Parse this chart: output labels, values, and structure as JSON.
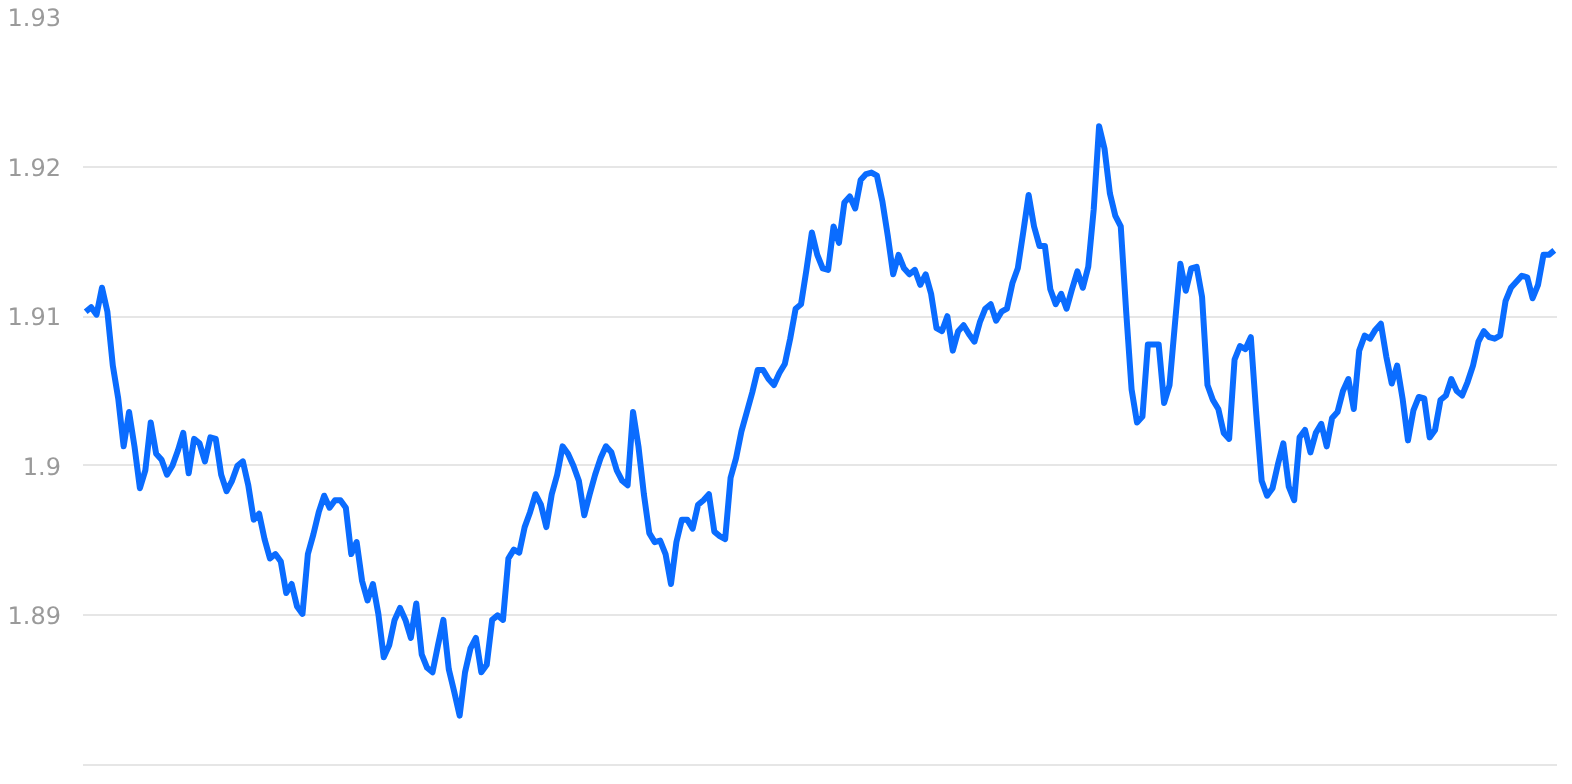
{
  "chart_data": {
    "type": "line",
    "color": "#0a6cff",
    "grid": "y",
    "tick_labels": "y",
    "ylim": [
      1.88,
      1.93
    ],
    "yticks": [
      1.89,
      1.9,
      1.91,
      1.92,
      1.93
    ],
    "categories": [
      null,
      null,
      null,
      null,
      null,
      null,
      null,
      null,
      null,
      null,
      null,
      null,
      null,
      null,
      null,
      null,
      null,
      null,
      null,
      null,
      null,
      null,
      null,
      null,
      null,
      null,
      null,
      null,
      null,
      null,
      null,
      null,
      null,
      null,
      null,
      null,
      null,
      null,
      null,
      null,
      null,
      null,
      null,
      null,
      null,
      null,
      null,
      null,
      null,
      null,
      null,
      null,
      null,
      null,
      null,
      null,
      null,
      null,
      null,
      null,
      null,
      null,
      null,
      null,
      null,
      null,
      null,
      null,
      null,
      null,
      null,
      null,
      null,
      null,
      null,
      null,
      null,
      null,
      null,
      null,
      null,
      null,
      null,
      null,
      null,
      null,
      null,
      null,
      null,
      null,
      null,
      null,
      null,
      null,
      null,
      null,
      null,
      null,
      null,
      null,
      null,
      null,
      null,
      null,
      null,
      null,
      null,
      null,
      null,
      null,
      null,
      null,
      null,
      null,
      null,
      null,
      null,
      null,
      null,
      null,
      null,
      null,
      null,
      null,
      null,
      null,
      null,
      null,
      null,
      null,
      null,
      null,
      null,
      null,
      null,
      null,
      null,
      null,
      null,
      null,
      null,
      null,
      null,
      null,
      null,
      null,
      null,
      null,
      null,
      null,
      null,
      null,
      null,
      null,
      null,
      null,
      null,
      null,
      null,
      null,
      null,
      null,
      null,
      null,
      null,
      null,
      null,
      null,
      null,
      null,
      null,
      null,
      null,
      null,
      null,
      null,
      null,
      null,
      null,
      null,
      null,
      null,
      null,
      null,
      null,
      null,
      null,
      null,
      null,
      null,
      null,
      null,
      null,
      null,
      null,
      null,
      null,
      null,
      null,
      null,
      null,
      null,
      null,
      null,
      null,
      null,
      null,
      null,
      null,
      null,
      null,
      null,
      null,
      null,
      null,
      null,
      null,
      null,
      null,
      null,
      null,
      null,
      null,
      null,
      null,
      null,
      null,
      null,
      null,
      null,
      null,
      null,
      null,
      null,
      null,
      null,
      null,
      null,
      null,
      null,
      null,
      null,
      null,
      null,
      null,
      null,
      null,
      null,
      null,
      null,
      null,
      null,
      null,
      null,
      null,
      null,
      null,
      null,
      null,
      null,
      null,
      null,
      null,
      null,
      null,
      null,
      null,
      null,
      null,
      null,
      null,
      null
    ],
    "values": [
      1.9103,
      1.9106,
      1.9101,
      1.9119,
      1.9103,
      1.9067,
      1.9045,
      1.9013,
      1.9036,
      1.9013,
      1.8985,
      1.8997,
      1.9029,
      1.9008,
      1.9004,
      1.8994,
      1.9,
      1.901,
      1.9022,
      1.8995,
      1.9018,
      1.9015,
      1.9003,
      1.9019,
      1.9018,
      1.8994,
      1.8983,
      1.899,
      1.9,
      1.9003,
      1.8987,
      1.8964,
      1.8968,
      1.8951,
      1.8938,
      1.8941,
      1.8936,
      1.8915,
      1.8921,
      1.8906,
      1.8901,
      1.8941,
      1.8954,
      1.8969,
      1.898,
      1.8972,
      1.8977,
      1.8977,
      1.8972,
      1.8941,
      1.8949,
      1.8923,
      1.891,
      1.8921,
      1.8901,
      1.8872,
      1.888,
      1.8897,
      1.8905,
      1.8897,
      1.8885,
      1.8908,
      1.8874,
      1.8865,
      1.8862,
      1.888,
      1.8897,
      1.8864,
      1.8849,
      1.8833,
      1.8862,
      1.8878,
      1.8885,
      1.8862,
      1.8867,
      1.8897,
      1.89,
      1.8897,
      1.8938,
      1.8944,
      1.8942,
      1.8959,
      1.8969,
      1.8981,
      1.8974,
      1.8959,
      1.8981,
      1.8994,
      1.9013,
      1.9008,
      1.9,
      1.899,
      1.8967,
      1.8981,
      1.8994,
      1.9005,
      1.9013,
      1.9009,
      1.8997,
      1.899,
      1.8987,
      1.9036,
      1.9013,
      1.8981,
      1.8955,
      1.8949,
      1.895,
      1.8941,
      1.8921,
      1.8949,
      1.8964,
      1.8964,
      1.8958,
      1.8974,
      1.8977,
      1.8981,
      1.8956,
      1.8953,
      1.8951,
      1.8992,
      1.9005,
      1.9023,
      1.9036,
      1.9049,
      1.9064,
      1.9064,
      1.9058,
      1.9054,
      1.9062,
      1.9068,
      1.9085,
      1.9105,
      1.9108,
      1.9131,
      1.9156,
      1.9141,
      1.9132,
      1.9131,
      1.916,
      1.9149,
      1.9176,
      1.918,
      1.9172,
      1.9191,
      1.9195,
      1.9196,
      1.9194,
      1.9177,
      1.9154,
      1.9128,
      1.9141,
      1.9132,
      1.9128,
      1.9131,
      1.9121,
      1.9128,
      1.9115,
      1.9092,
      1.909,
      1.91,
      1.9077,
      1.909,
      1.9094,
      1.9088,
      1.9083,
      1.9096,
      1.9105,
      1.9108,
      1.9097,
      1.9103,
      1.9105,
      1.9122,
      1.9132,
      1.9156,
      1.9181,
      1.916,
      1.9147,
      1.9147,
      1.9118,
      1.9108,
      1.9115,
      1.9105,
      1.9118,
      1.913,
      1.9119,
      1.9133,
      1.9171,
      1.9227,
      1.9212,
      1.9182,
      1.9167,
      1.916,
      1.9103,
      1.9051,
      1.9029,
      1.9033,
      1.9081,
      1.9081,
      1.9081,
      1.9042,
      1.9054,
      1.9095,
      1.9135,
      1.9117,
      1.9132,
      1.9133,
      1.9113,
      1.9054,
      1.9044,
      1.9038,
      1.9022,
      1.9018,
      1.9071,
      1.908,
      1.9078,
      1.9086,
      1.9035,
      1.899,
      1.898,
      1.8985,
      1.9001,
      1.9015,
      1.8986,
      1.8977,
      1.9019,
      1.9024,
      1.9009,
      1.9022,
      1.9028,
      1.9013,
      1.9032,
      1.9036,
      1.905,
      1.9058,
      1.9038,
      1.9077,
      1.9087,
      1.9085,
      1.9091,
      1.9095,
      1.9073,
      1.9055,
      1.9067,
      1.9045,
      1.9017,
      1.9037,
      1.9046,
      1.9045,
      1.9019,
      1.9024,
      1.9044,
      1.9047,
      1.9058,
      1.905,
      1.9047,
      1.9056,
      1.9067,
      1.9083,
      1.909,
      1.9086,
      1.9085,
      1.9087,
      1.911,
      1.9119,
      1.9123,
      1.9127,
      1.9126,
      1.9112,
      1.9121,
      1.9141,
      1.9141,
      1.9144
    ]
  }
}
